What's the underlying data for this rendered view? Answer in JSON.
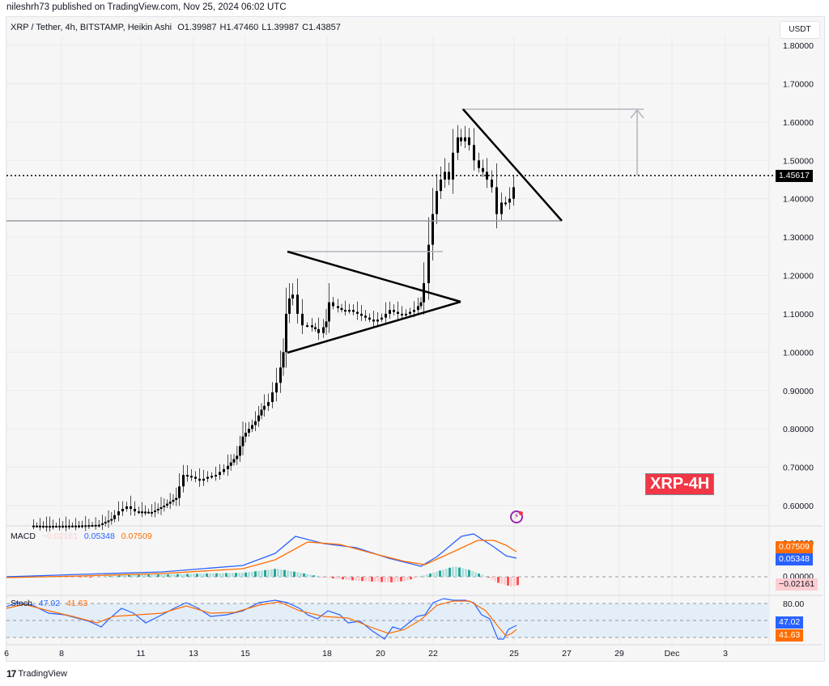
{
  "header": {
    "published": "nileshrh73 published on TradingView.com, Nov 25, 2024 06:02 UTC",
    "symbol": "XRP / Tether, 4h, BITSTAMP, Heikin Ashi",
    "open": "O1.39987",
    "high": "H1.47460",
    "low": "L1.39987",
    "close": "C1.43857",
    "currency": "USDT"
  },
  "price_tag": {
    "value": "1.45617"
  },
  "badge": {
    "label": "XRP-4H"
  },
  "macd": {
    "label": "MACD",
    "hist": "−0.02161",
    "macd": "0.05348",
    "signal": "0.07509",
    "axis": [
      "0.10000",
      "0.00000"
    ],
    "colors": {
      "macd": "#2962ff",
      "signal": "#ff6d00",
      "hist_neg_light": "#ffcdd2",
      "hist_pos": "#26a69a"
    }
  },
  "stoch": {
    "label": "Stoch",
    "k": "47.02",
    "d": "41.63",
    "axis": [
      "80.00"
    ],
    "colors": {
      "k": "#2962ff",
      "d": "#ff6d00"
    }
  },
  "footer": {
    "brand": "TradingView",
    "logo": "17"
  },
  "chart_data": {
    "type": "candlestick",
    "title": "XRP / Tether, 4h, BITSTAMP, Heikin Ashi",
    "ylabel": "USDT",
    "ylim": [
      0.55,
      1.85
    ],
    "y_ticks": [
      "1.80000",
      "1.70000",
      "1.60000",
      "1.50000",
      "1.40000",
      "1.30000",
      "1.20000",
      "1.10000",
      "1.00000",
      "0.90000",
      "0.80000",
      "0.70000",
      "0.60000"
    ],
    "x_ticks": [
      "6",
      "8",
      "11",
      "13",
      "15",
      "18",
      "20",
      "22",
      "25",
      "27",
      "29",
      "Dec",
      "3"
    ],
    "last_price": 1.45617,
    "ohlc_last": {
      "open": 1.39987,
      "high": 1.4746,
      "low": 1.39987,
      "close": 1.43857
    },
    "annotations": [
      {
        "type": "horizontal_level",
        "price": 1.34
      },
      {
        "type": "symmetrical_triangle",
        "from": "Nov 16",
        "to": "Nov 22",
        "apex_price": 1.13
      },
      {
        "type": "descending_trendline",
        "from_price": 1.63,
        "to_price": 1.34
      },
      {
        "type": "target_arrow",
        "price": 1.63
      },
      {
        "type": "label",
        "text": "XRP-4H"
      }
    ],
    "approx_path": [
      {
        "date": "Nov 7",
        "price": 0.55
      },
      {
        "date": "Nov 10",
        "price": 0.56
      },
      {
        "date": "Nov 12",
        "price": 0.62
      },
      {
        "date": "Nov 13",
        "price": 0.7
      },
      {
        "date": "Nov 15",
        "price": 0.8
      },
      {
        "date": "Nov 16",
        "price": 1.0
      },
      {
        "date": "Nov 16",
        "price": 1.15
      },
      {
        "date": "Nov 18",
        "price": 1.08
      },
      {
        "date": "Nov 20",
        "price": 1.1
      },
      {
        "date": "Nov 21",
        "price": 1.13
      },
      {
        "date": "Nov 22",
        "price": 1.4
      },
      {
        "date": "Nov 23",
        "price": 1.55
      },
      {
        "date": "Nov 24",
        "price": 1.45
      },
      {
        "date": "Nov 24",
        "price": 1.35
      },
      {
        "date": "Nov 25",
        "price": 1.44
      }
    ]
  }
}
